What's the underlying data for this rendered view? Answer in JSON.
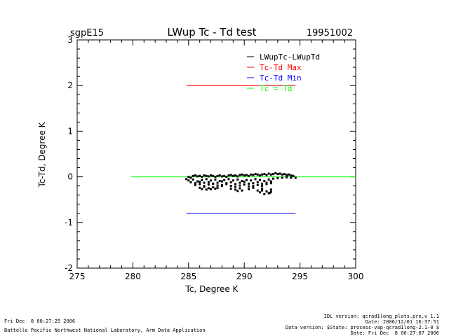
{
  "header": {
    "site": "sgpE15",
    "title": "LWup Tc - Td test",
    "date": "19951002"
  },
  "footer": {
    "left_line1": "Fri Dec  8 00:27:25 2006",
    "left_line2": "Battelle Pacific Northwest National Laboratory, Arm Data Application",
    "right_line1": "IDL version: qcrad1long_plots.pro,v 1.1",
    "right_line2": "Date: 2006/12/01 16:37:51",
    "right_line3": "Data version: $State: process-vap-qcrad1long-2.1-0 $",
    "right_line4": "Date: Fri Dec  8 00:27:07 2006"
  },
  "colors": {
    "scatter": "#000000",
    "max": "#ff0000",
    "min": "#0000ff",
    "equal": "#00ff00",
    "axis": "#000000"
  },
  "chart_data": {
    "type": "scatter",
    "title": "LWup Tc - Td test",
    "xlabel": "Tc, Degree K",
    "ylabel": "Tc-Td, Degree K",
    "xlim": [
      275,
      300
    ],
    "ylim": [
      -2,
      3
    ],
    "xticks": [
      275,
      280,
      285,
      290,
      295,
      300
    ],
    "yticks": [
      -2,
      -1,
      0,
      1,
      2,
      3
    ],
    "grid": false,
    "legend_position": "top-right",
    "legend": [
      {
        "label": "LWupTc-LWupTd",
        "color": "#000000"
      },
      {
        "label": "Tc-Td Max",
        "color": "#ff0000"
      },
      {
        "label": "Tc-Td Min",
        "color": "#0000ff"
      },
      {
        "label": "Tc = Td",
        "color": "#00ff00"
      }
    ],
    "lines": [
      {
        "name": "Tc-Td Max",
        "color": "#ff0000",
        "x": [
          284.8,
          294.6
        ],
        "y": [
          2.0,
          2.0
        ]
      },
      {
        "name": "Tc-Td Min",
        "color": "#0000ff",
        "x": [
          284.8,
          294.6
        ],
        "y": [
          -0.8,
          -0.8
        ]
      },
      {
        "name": "Tc = Td",
        "color": "#00ff00",
        "x": [
          279.8,
          300.0
        ],
        "y": [
          0.0,
          0.0
        ]
      }
    ],
    "series": [
      {
        "name": "LWupTc-LWupTd",
        "color": "#000000",
        "x": [
          284.8,
          285.0,
          285.2,
          285.4,
          285.6,
          285.8,
          286.0,
          286.2,
          286.4,
          286.6,
          286.8,
          287.0,
          287.2,
          287.4,
          287.6,
          287.8,
          288.0,
          288.2,
          288.4,
          288.6,
          288.8,
          289.0,
          289.2,
          289.4,
          289.6,
          289.8,
          290.0,
          290.2,
          290.4,
          290.6,
          290.8,
          291.0,
          291.2,
          291.4,
          291.6,
          291.8,
          292.0,
          292.2,
          292.4,
          292.6,
          292.8,
          293.0,
          293.2,
          293.4,
          293.6,
          293.8,
          294.0,
          294.2,
          294.4,
          294.6,
          285.0,
          285.4,
          285.8,
          286.2,
          286.6,
          287.0,
          287.4,
          287.8,
          288.2,
          288.6,
          289.0,
          289.4,
          289.8,
          290.2,
          290.6,
          291.0,
          291.4,
          291.8,
          292.2,
          292.6,
          293.0,
          293.4,
          293.8,
          294.2,
          285.2,
          285.6,
          286.0,
          286.4,
          286.8,
          287.2,
          287.6,
          288.0,
          288.4,
          288.8,
          289.2,
          289.6,
          290.0,
          290.4,
          290.8,
          291.2,
          291.6,
          292.0,
          292.4,
          285.6,
          286.0,
          286.4,
          286.8,
          287.2,
          287.6,
          288.0,
          288.4,
          288.8,
          289.2,
          289.6,
          290.0,
          290.4,
          290.8,
          291.2,
          291.6,
          292.0,
          292.4,
          286.0,
          286.4,
          286.8,
          287.2,
          287.6,
          288.0,
          288.8,
          289.2,
          289.6,
          290.4,
          290.8,
          291.2,
          291.6,
          292.0,
          292.4,
          286.2,
          286.6,
          287.0,
          287.4,
          289.4,
          289.8,
          291.4,
          291.8,
          292.2,
          292.4,
          291.6,
          292.0,
          292.3
        ],
        "y": [
          -0.05,
          0.0,
          -0.02,
          0.02,
          0.03,
          0.01,
          0.02,
          0.0,
          0.03,
          0.02,
          0.01,
          0.03,
          0.02,
          0.0,
          0.02,
          0.03,
          0.01,
          0.02,
          0.0,
          0.03,
          0.04,
          0.02,
          0.03,
          0.01,
          0.04,
          0.05,
          0.03,
          0.04,
          0.02,
          0.05,
          0.04,
          0.06,
          0.05,
          0.03,
          0.05,
          0.06,
          0.04,
          0.07,
          0.05,
          0.06,
          0.08,
          0.06,
          0.07,
          0.05,
          0.06,
          0.04,
          0.05,
          0.03,
          0.02,
          -0.02,
          -0.08,
          -0.06,
          -0.1,
          -0.07,
          -0.05,
          -0.08,
          -0.06,
          -0.09,
          -0.07,
          -0.05,
          -0.08,
          -0.06,
          -0.09,
          -0.07,
          -0.08,
          -0.05,
          -0.07,
          -0.09,
          -0.06,
          -0.04,
          -0.03,
          -0.02,
          -0.01,
          -0.02,
          -0.12,
          -0.14,
          -0.11,
          -0.13,
          -0.12,
          -0.15,
          -0.13,
          -0.1,
          -0.14,
          -0.12,
          -0.16,
          -0.13,
          -0.11,
          -0.15,
          -0.14,
          -0.12,
          -0.15,
          -0.13,
          -0.1,
          -0.18,
          -0.16,
          -0.2,
          -0.17,
          -0.15,
          -0.19,
          -0.18,
          -0.16,
          -0.2,
          -0.22,
          -0.19,
          -0.17,
          -0.21,
          -0.2,
          -0.18,
          -0.2,
          -0.16,
          -0.14,
          -0.24,
          -0.22,
          -0.25,
          -0.23,
          -0.24,
          -0.2,
          -0.26,
          -0.28,
          -0.25,
          -0.27,
          -0.24,
          -0.3,
          -0.26,
          -0.32,
          -0.28,
          -0.27,
          -0.28,
          -0.27,
          -0.26,
          -0.31,
          -0.3,
          -0.34,
          -0.38,
          -0.36,
          -0.33,
          -0.3,
          -0.32,
          -0.35
        ]
      }
    ]
  }
}
